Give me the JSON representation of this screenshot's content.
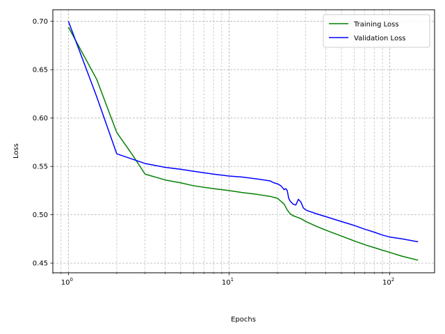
{
  "chart_data": {
    "type": "line",
    "x_scale": "log",
    "xlabel": "Epochs",
    "ylabel": "Loss",
    "xlim": [
      0.8,
      190
    ],
    "ylim": [
      0.44,
      0.712
    ],
    "grid": true,
    "grid_style": "dashed",
    "legend_position": "upper right",
    "x_tick_labels": [
      {
        "value": 1,
        "base": "10",
        "exp": "0"
      },
      {
        "value": 10,
        "base": "10",
        "exp": "1"
      },
      {
        "value": 100,
        "base": "10",
        "exp": "2"
      }
    ],
    "y_ticks": [
      0.45,
      0.5,
      0.55,
      0.6,
      0.65,
      0.7
    ],
    "y_tick_labels": [
      "0.45",
      "0.50",
      "0.55",
      "0.60",
      "0.65",
      "0.70"
    ],
    "series": [
      {
        "name": "Training Loss",
        "color": "#008000",
        "x": [
          1,
          1.5,
          2,
          2.5,
          3,
          4,
          5,
          6,
          8,
          10,
          12,
          15,
          18,
          20,
          21,
          22,
          23,
          24,
          25,
          26,
          28,
          30,
          35,
          40,
          50,
          60,
          70,
          80,
          100,
          120,
          150
        ],
        "y": [
          0.694,
          0.64,
          0.585,
          0.562,
          0.542,
          0.536,
          0.533,
          0.53,
          0.527,
          0.525,
          0.523,
          0.521,
          0.519,
          0.517,
          0.514,
          0.511,
          0.505,
          0.501,
          0.499,
          0.498,
          0.496,
          0.493,
          0.488,
          0.484,
          0.478,
          0.473,
          0.469,
          0.466,
          0.461,
          0.457,
          0.453
        ]
      },
      {
        "name": "Validation Loss",
        "color": "#0000ff",
        "x": [
          1,
          1.5,
          2,
          3,
          4,
          5,
          6,
          8,
          10,
          12,
          15,
          18,
          19,
          20,
          21,
          22,
          22.5,
          23,
          23.5,
          24,
          25,
          26,
          27,
          28,
          29,
          30,
          31,
          35,
          40,
          50,
          60,
          70,
          80,
          90,
          100,
          120,
          150
        ],
        "y": [
          0.7,
          0.622,
          0.563,
          0.553,
          0.549,
          0.547,
          0.545,
          0.542,
          0.54,
          0.539,
          0.537,
          0.535,
          0.533,
          0.532,
          0.53,
          0.526,
          0.527,
          0.525,
          0.517,
          0.514,
          0.511,
          0.51,
          0.516,
          0.513,
          0.507,
          0.505,
          0.504,
          0.501,
          0.498,
          0.493,
          0.489,
          0.485,
          0.482,
          0.479,
          0.477,
          0.475,
          0.472
        ]
      }
    ]
  }
}
